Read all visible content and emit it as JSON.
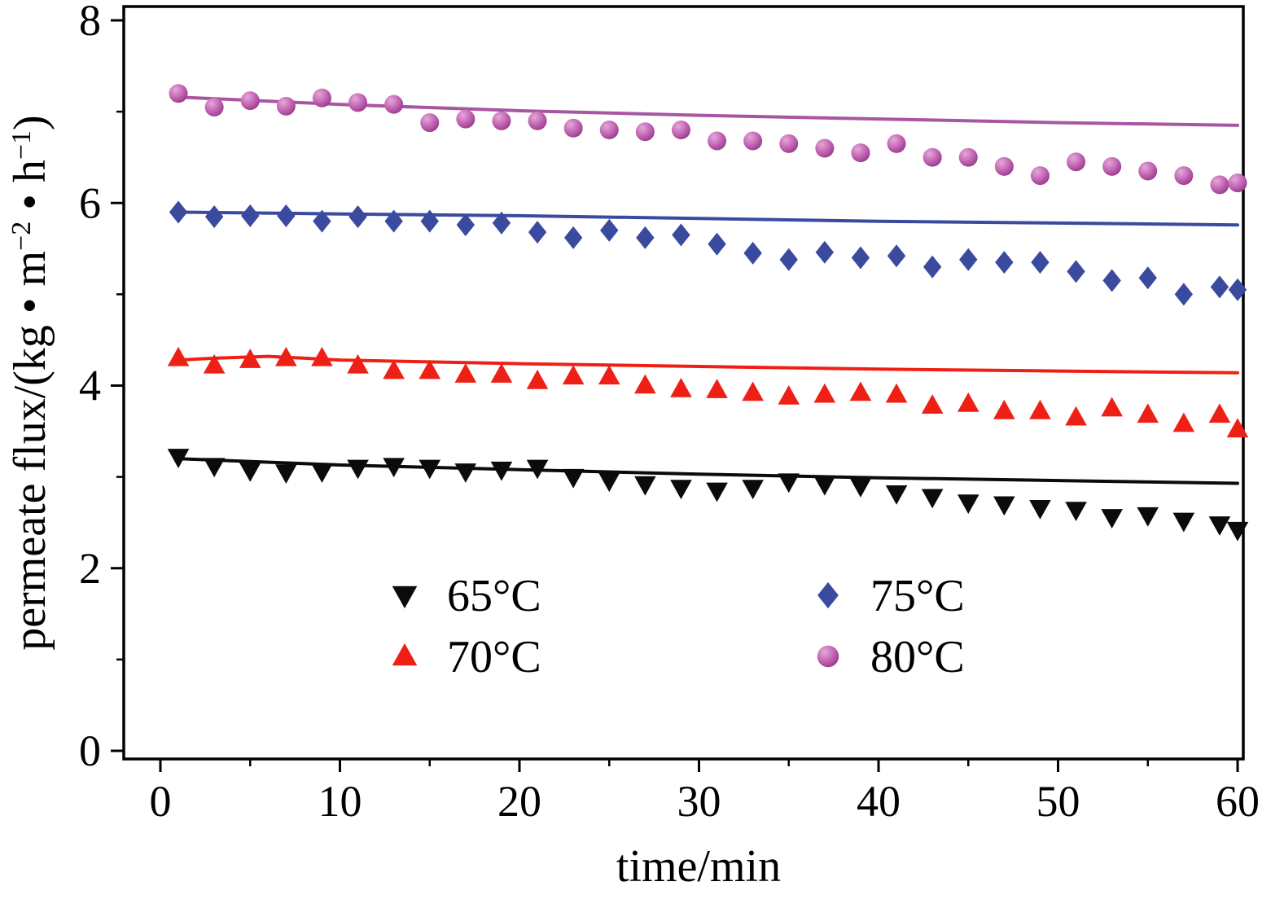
{
  "chart_data": {
    "type": "scatter",
    "title": "",
    "xlabel": "time/min",
    "ylabel": "permeate flux/(kg • m⁻² • h⁻¹)",
    "ylabel_parts": [
      {
        "t": "permeate flux/(kg • m"
      },
      {
        "t": "−2",
        "sup": true
      },
      {
        "t": " • h"
      },
      {
        "t": "−1",
        "sup": true
      },
      {
        "t": ")"
      }
    ],
    "xlim": [
      0,
      60
    ],
    "ylim": [
      0,
      8
    ],
    "x_ticks": [
      0,
      10,
      20,
      30,
      40,
      50,
      60
    ],
    "y_ticks": [
      0,
      2,
      4,
      6,
      8
    ],
    "x_minor_step": 5,
    "y_minor_step": 1,
    "grid": false,
    "background_color": "#ffffff",
    "frame_color": "#000000",
    "x": [
      1,
      3,
      5,
      7,
      9,
      11,
      13,
      15,
      17,
      19,
      21,
      23,
      25,
      27,
      29,
      31,
      33,
      35,
      37,
      39,
      41,
      43,
      45,
      47,
      49,
      51,
      53,
      55,
      57,
      59,
      60
    ],
    "series": [
      {
        "name": "65°C",
        "marker": "triangle-down",
        "color": "#0b0b0b",
        "line_color": "#0b0b0b",
        "values": [
          3.22,
          3.12,
          3.07,
          3.05,
          3.06,
          3.1,
          3.12,
          3.1,
          3.06,
          3.08,
          3.1,
          3.0,
          2.96,
          2.92,
          2.88,
          2.85,
          2.88,
          2.95,
          2.92,
          2.9,
          2.82,
          2.78,
          2.72,
          2.7,
          2.66,
          2.64,
          2.56,
          2.58,
          2.52,
          2.48,
          2.42
        ],
        "fit_line": {
          "x": [
            1,
            10,
            20,
            30,
            40,
            50,
            60
          ],
          "y": [
            3.2,
            3.13,
            3.08,
            3.03,
            2.99,
            2.96,
            2.93
          ]
        }
      },
      {
        "name": "70°C",
        "marker": "triangle-up",
        "color": "#ee2015",
        "line_color": "#ee2015",
        "values": [
          4.3,
          4.22,
          4.28,
          4.3,
          4.3,
          4.22,
          4.16,
          4.16,
          4.12,
          4.12,
          4.05,
          4.1,
          4.1,
          4.0,
          3.96,
          3.95,
          3.92,
          3.88,
          3.9,
          3.92,
          3.9,
          3.78,
          3.8,
          3.72,
          3.72,
          3.65,
          3.75,
          3.68,
          3.58,
          3.68,
          3.52
        ],
        "fit_line": {
          "x": [
            1,
            3,
            6,
            10,
            20,
            30,
            40,
            50,
            60
          ],
          "y": [
            4.28,
            4.3,
            4.32,
            4.28,
            4.24,
            4.21,
            4.18,
            4.16,
            4.14
          ]
        }
      },
      {
        "name": "75°C",
        "marker": "diamond",
        "color": "#3a4a9f",
        "line_color": "#3a4a9f",
        "values": [
          5.9,
          5.85,
          5.86,
          5.86,
          5.8,
          5.85,
          5.8,
          5.8,
          5.76,
          5.78,
          5.68,
          5.62,
          5.7,
          5.62,
          5.65,
          5.55,
          5.45,
          5.38,
          5.46,
          5.4,
          5.42,
          5.3,
          5.38,
          5.35,
          5.35,
          5.25,
          5.15,
          5.18,
          5.0,
          5.08,
          5.05
        ],
        "fit_line": {
          "x": [
            1,
            10,
            20,
            30,
            40,
            50,
            60
          ],
          "y": [
            5.9,
            5.88,
            5.86,
            5.83,
            5.8,
            5.78,
            5.76
          ]
        }
      },
      {
        "name": "80°C",
        "marker": "circle",
        "color": "#c263b1",
        "color_light": "#e4a8da",
        "color_dark": "#8e3586",
        "line_color": "#a855a2",
        "values": [
          7.2,
          7.05,
          7.12,
          7.06,
          7.15,
          7.1,
          7.08,
          6.88,
          6.92,
          6.9,
          6.9,
          6.82,
          6.8,
          6.78,
          6.8,
          6.68,
          6.68,
          6.65,
          6.6,
          6.55,
          6.65,
          6.5,
          6.5,
          6.4,
          6.3,
          6.45,
          6.4,
          6.35,
          6.3,
          6.2,
          6.22
        ],
        "fit_line": {
          "x": [
            1,
            10,
            20,
            30,
            40,
            50,
            60
          ],
          "y": [
            7.16,
            7.08,
            7.01,
            6.96,
            6.92,
            6.88,
            6.85
          ]
        }
      }
    ],
    "legend": {
      "position": "inside-bottom-center",
      "rows": [
        [
          "65°C",
          "75°C"
        ],
        [
          "70°C",
          "80°C"
        ]
      ]
    }
  }
}
